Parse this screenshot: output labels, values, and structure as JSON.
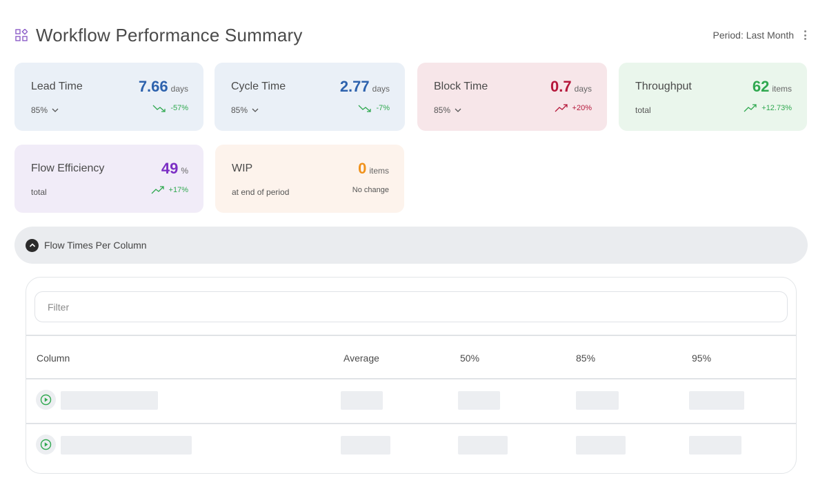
{
  "header": {
    "title": "Workflow Performance Summary",
    "period": "Period: Last Month"
  },
  "cards": {
    "lead_time": {
      "label": "Lead Time",
      "value": "7.66",
      "unit": "days",
      "sub": "85%",
      "trend": "-57%",
      "trend_direction": "down",
      "value_color": "#2d62ad",
      "trend_color": "#2fa84f"
    },
    "cycle_time": {
      "label": "Cycle Time",
      "value": "2.77",
      "unit": "days",
      "sub": "85%",
      "trend": "-7%",
      "trend_direction": "down",
      "value_color": "#2d62ad",
      "trend_color": "#2fa84f"
    },
    "block_time": {
      "label": "Block Time",
      "value": "0.7",
      "unit": "days",
      "sub": "85%",
      "trend": "+20%",
      "trend_direction": "up",
      "value_color": "#b5173a",
      "trend_color": "#b5173a"
    },
    "throughput": {
      "label": "Throughput",
      "value": "62",
      "unit": "items",
      "sub": "total",
      "trend": "+12.73%",
      "trend_direction": "up",
      "value_color": "#2fa84f",
      "trend_color": "#2fa84f"
    },
    "flow_efficiency": {
      "label": "Flow Efficiency",
      "value": "49",
      "unit": "%",
      "sub": "total",
      "trend": "+17%",
      "trend_direction": "up",
      "value_color": "#7b2fc4",
      "trend_color": "#2fa84f"
    },
    "wip": {
      "label": "WIP",
      "value": "0",
      "unit": "items",
      "sub": "at end of period",
      "trend": "No change",
      "value_color": "#f0921c"
    }
  },
  "section": {
    "label": "Flow Times Per Column",
    "expanded": true
  },
  "table": {
    "filter_placeholder": "Filter",
    "columns": [
      "Column",
      "Average",
      "50%",
      "85%",
      "95%"
    ],
    "rows_loading": 2
  },
  "icons": {
    "app": "widgets-icon",
    "menu": "kebab-menu-icon",
    "collapse": "chevron-up-icon",
    "row_expand": "play-circle-icon",
    "dropdown": "chevron-down-icon",
    "trend_down": "trending-down-icon",
    "trend_up": "trending-up-icon"
  }
}
